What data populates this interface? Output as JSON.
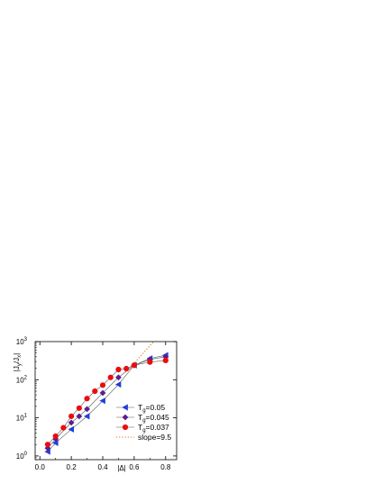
{
  "chart_data": {
    "type": "line",
    "title": "",
    "xlabel": "|Δ|",
    "ylabel": "|J_y/J_x|",
    "xlim": [
      -0.03,
      0.87
    ],
    "ylim": [
      0.8,
      1000
    ],
    "yscale": "log",
    "x_ticks": [
      {
        "v": 0.0,
        "label": "0.0"
      },
      {
        "v": 0.2,
        "label": "0.2"
      },
      {
        "v": 0.4,
        "label": "0.4"
      },
      {
        "v": 0.6,
        "label": "0.6"
      },
      {
        "v": 0.8,
        "label": "0.8"
      }
    ],
    "y_ticks": [
      {
        "v": 1,
        "base": "10",
        "exp": "0"
      },
      {
        "v": 10,
        "base": "10",
        "exp": "1"
      },
      {
        "v": 100,
        "base": "10",
        "exp": "2"
      },
      {
        "v": 1000,
        "base": "10",
        "exp": "3"
      }
    ],
    "legend_position": "bottom-right",
    "series": [
      {
        "name": "T_g=0.05",
        "color": "#1f3fd6",
        "marker": "triangle-left",
        "x": [
          0.05,
          0.1,
          0.2,
          0.3,
          0.4,
          0.5,
          0.6,
          0.7,
          0.8
        ],
        "y": [
          1.3,
          2.2,
          5.0,
          11.0,
          28.0,
          75.0,
          240.0,
          360.0,
          440.0
        ]
      },
      {
        "name": "T_g=0.045",
        "color": "#5b1f8f",
        "marker": "diamond",
        "x": [
          0.05,
          0.1,
          0.2,
          0.25,
          0.3,
          0.4,
          0.5,
          0.6,
          0.7,
          0.8
        ],
        "y": [
          1.6,
          2.8,
          7.5,
          11.0,
          17.0,
          45.0,
          115.0,
          240.0,
          340.0,
          400.0
        ]
      },
      {
        "name": "T_g=0.037",
        "color": "#ee0b0b",
        "marker": "circle",
        "x": [
          0.05,
          0.1,
          0.15,
          0.2,
          0.25,
          0.3,
          0.35,
          0.4,
          0.45,
          0.5,
          0.55,
          0.6,
          0.7,
          0.8
        ],
        "y": [
          2.0,
          3.3,
          5.5,
          11.0,
          18.0,
          32.0,
          50.0,
          72.0,
          115.0,
          185.0,
          195.0,
          240.0,
          290.0,
          320.0
        ]
      }
    ],
    "reference_lines": [
      {
        "name": "slope=9.5",
        "color": "#d9791a",
        "style": "dotted",
        "x": [
          0.58,
          0.72
        ],
        "y": [
          220.0,
          960.0
        ]
      }
    ]
  }
}
